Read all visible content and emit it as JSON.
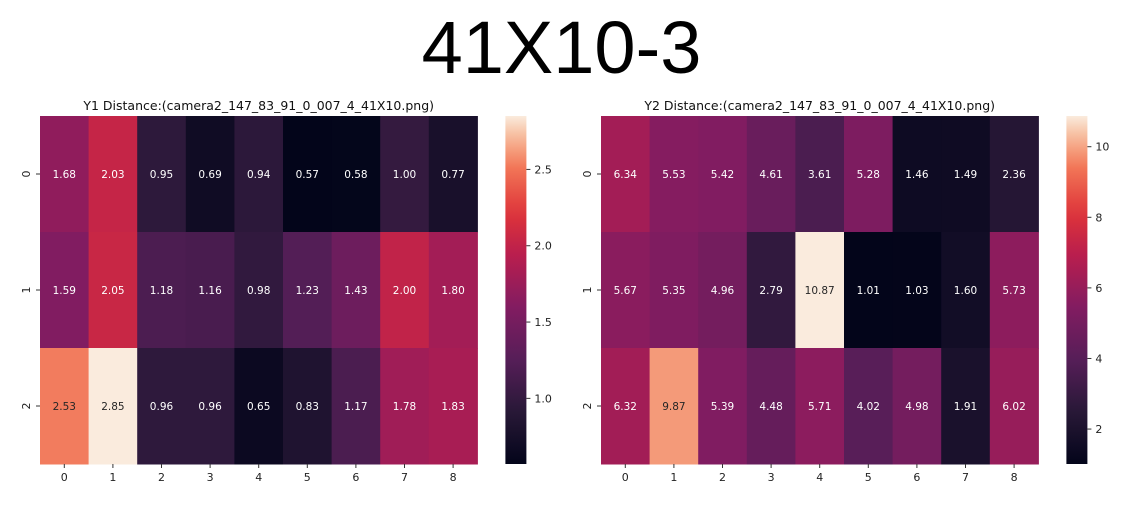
{
  "page": {
    "title": "41X10-3"
  },
  "chart_data": [
    {
      "type": "heatmap",
      "title": "Y1 Distance:(camera2_147_83_91_0_007_4_41X10.png)",
      "x_categories": [
        "0",
        "1",
        "2",
        "3",
        "4",
        "5",
        "6",
        "7",
        "8"
      ],
      "y_categories": [
        "0",
        "1",
        "2"
      ],
      "values": [
        [
          1.68,
          2.03,
          0.95,
          0.69,
          0.94,
          0.57,
          0.58,
          1.0,
          0.77
        ],
        [
          1.59,
          2.05,
          1.18,
          1.16,
          0.98,
          1.23,
          1.43,
          2.0,
          1.8
        ],
        [
          2.53,
          2.85,
          0.96,
          0.96,
          0.65,
          0.83,
          1.17,
          1.78,
          1.83
        ]
      ],
      "value_labels": [
        [
          "1.68",
          "2.03",
          "0.95",
          "0.69",
          "0.94",
          "0.57",
          "0.58",
          "1.00",
          "0.77"
        ],
        [
          "1.59",
          "2.05",
          "1.18",
          "1.16",
          "0.98",
          "1.23",
          "1.43",
          "2.00",
          "1.80"
        ],
        [
          "2.53",
          "2.85",
          "0.96",
          "0.96",
          "0.65",
          "0.83",
          "1.17",
          "1.78",
          "1.83"
        ]
      ],
      "colorbar": {
        "range": [
          0.57,
          2.85
        ],
        "ticks": [
          1.0,
          1.5,
          2.0,
          2.5
        ],
        "tick_labels": [
          "1.0",
          "1.5",
          "2.0",
          "2.5"
        ]
      },
      "colormap": "rocket"
    },
    {
      "type": "heatmap",
      "title": "Y2 Distance:(camera2_147_83_91_0_007_4_41X10.png)",
      "x_categories": [
        "0",
        "1",
        "2",
        "3",
        "4",
        "5",
        "6",
        "7",
        "8"
      ],
      "y_categories": [
        "0",
        "1",
        "2"
      ],
      "values": [
        [
          6.34,
          5.53,
          5.42,
          4.61,
          3.61,
          5.28,
          1.46,
          1.49,
          2.36
        ],
        [
          5.67,
          5.35,
          4.96,
          2.79,
          10.87,
          1.01,
          1.03,
          1.6,
          5.73
        ],
        [
          6.32,
          9.87,
          5.39,
          4.48,
          5.71,
          4.02,
          4.98,
          1.91,
          6.02
        ]
      ],
      "value_labels": [
        [
          "6.34",
          "5.53",
          "5.42",
          "4.61",
          "3.61",
          "5.28",
          "1.46",
          "1.49",
          "2.36"
        ],
        [
          "5.67",
          "5.35",
          "4.96",
          "2.79",
          "10.87",
          "1.01",
          "1.03",
          "1.60",
          "5.73"
        ],
        [
          "6.32",
          "9.87",
          "5.39",
          "4.48",
          "5.71",
          "4.02",
          "4.98",
          "1.91",
          "6.02"
        ]
      ],
      "colorbar": {
        "range": [
          1.01,
          10.87
        ],
        "ticks": [
          2,
          4,
          6,
          8,
          10
        ],
        "tick_labels": [
          "2",
          "4",
          "6",
          "8",
          "10"
        ]
      },
      "colormap": "rocket"
    }
  ]
}
